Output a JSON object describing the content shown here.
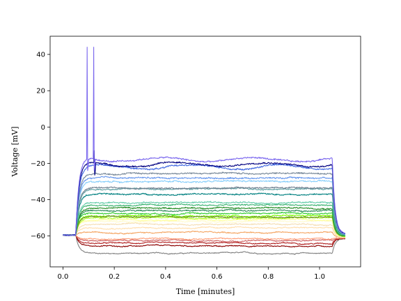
{
  "chart_data": {
    "type": "line",
    "xlabel": "Time [minutes]",
    "ylabel": "Voltage [mV]",
    "xlim": [
      -0.05,
      1.16
    ],
    "ylim": [
      -77,
      50
    ],
    "x_ticks": [
      0.0,
      0.2,
      0.4,
      0.6,
      0.8,
      1.0
    ],
    "x_tick_labels": [
      "0.0",
      "0.2",
      "0.4",
      "0.6",
      "0.8",
      "1.0"
    ],
    "y_ticks": [
      -60,
      -40,
      -20,
      0,
      20,
      40
    ],
    "y_tick_labels": [
      "−60",
      "−40",
      "−20",
      "0",
      "20",
      "40"
    ],
    "grid": false,
    "stimulus_start_min": 0.05,
    "stimulus_end_min": 1.05,
    "baseline_mV": -59.5,
    "series": [
      {
        "color": "#808080",
        "steady_mV": -69.5
      },
      {
        "color": "#8b0000",
        "steady_mV": -65.5
      },
      {
        "color": "#b22222",
        "steady_mV": -64.0
      },
      {
        "color": "#cd5c5c",
        "steady_mV": -62.5
      },
      {
        "color": "#ffa07a",
        "steady_mV": -61.5
      },
      {
        "color": "#f4a460",
        "steady_mV": -58.0
      },
      {
        "color": "#ffdead",
        "steady_mV": -55.5
      },
      {
        "color": "#f5deb3",
        "steady_mV": -53.5
      },
      {
        "color": "#fffacd",
        "steady_mV": -52.0
      },
      {
        "color": "#ffff99",
        "steady_mV": -51.0
      },
      {
        "color": "#adff2f",
        "steady_mV": -50.0
      },
      {
        "color": "#7cfc00",
        "steady_mV": -49.0
      },
      {
        "color": "#6b8e23",
        "steady_mV": -49.5
      },
      {
        "color": "#32cd32",
        "steady_mV": -47.5
      },
      {
        "color": "#2e8b57",
        "steady_mV": -46.0
      },
      {
        "color": "#228b22",
        "steady_mV": -44.5
      },
      {
        "color": "#3cb371",
        "steady_mV": -43.0
      },
      {
        "color": "#66cdaa",
        "steady_mV": -41.5
      },
      {
        "color": "#008080",
        "steady_mV": -37.0
      },
      {
        "color": "#5f9ea0",
        "steady_mV": -34.0
      },
      {
        "color": "#708090",
        "steady_mV": -33.5
      },
      {
        "color": "#87cefa",
        "steady_mV": -30.0
      },
      {
        "color": "#6495ed",
        "steady_mV": -28.0
      },
      {
        "color": "#778899",
        "steady_mV": -25.5
      },
      {
        "color": "#4169e1",
        "steady_mV": -22.0
      },
      {
        "color": "#000080",
        "steady_mV": -20.5,
        "spike_min": 0.122,
        "spike_peak_mV": -13.0
      },
      {
        "color": "#7b68ee",
        "steady_mV": -18.0,
        "spike_min": [
          0.095,
          0.12
        ],
        "spike_peak_mV": 44.0
      }
    ]
  }
}
